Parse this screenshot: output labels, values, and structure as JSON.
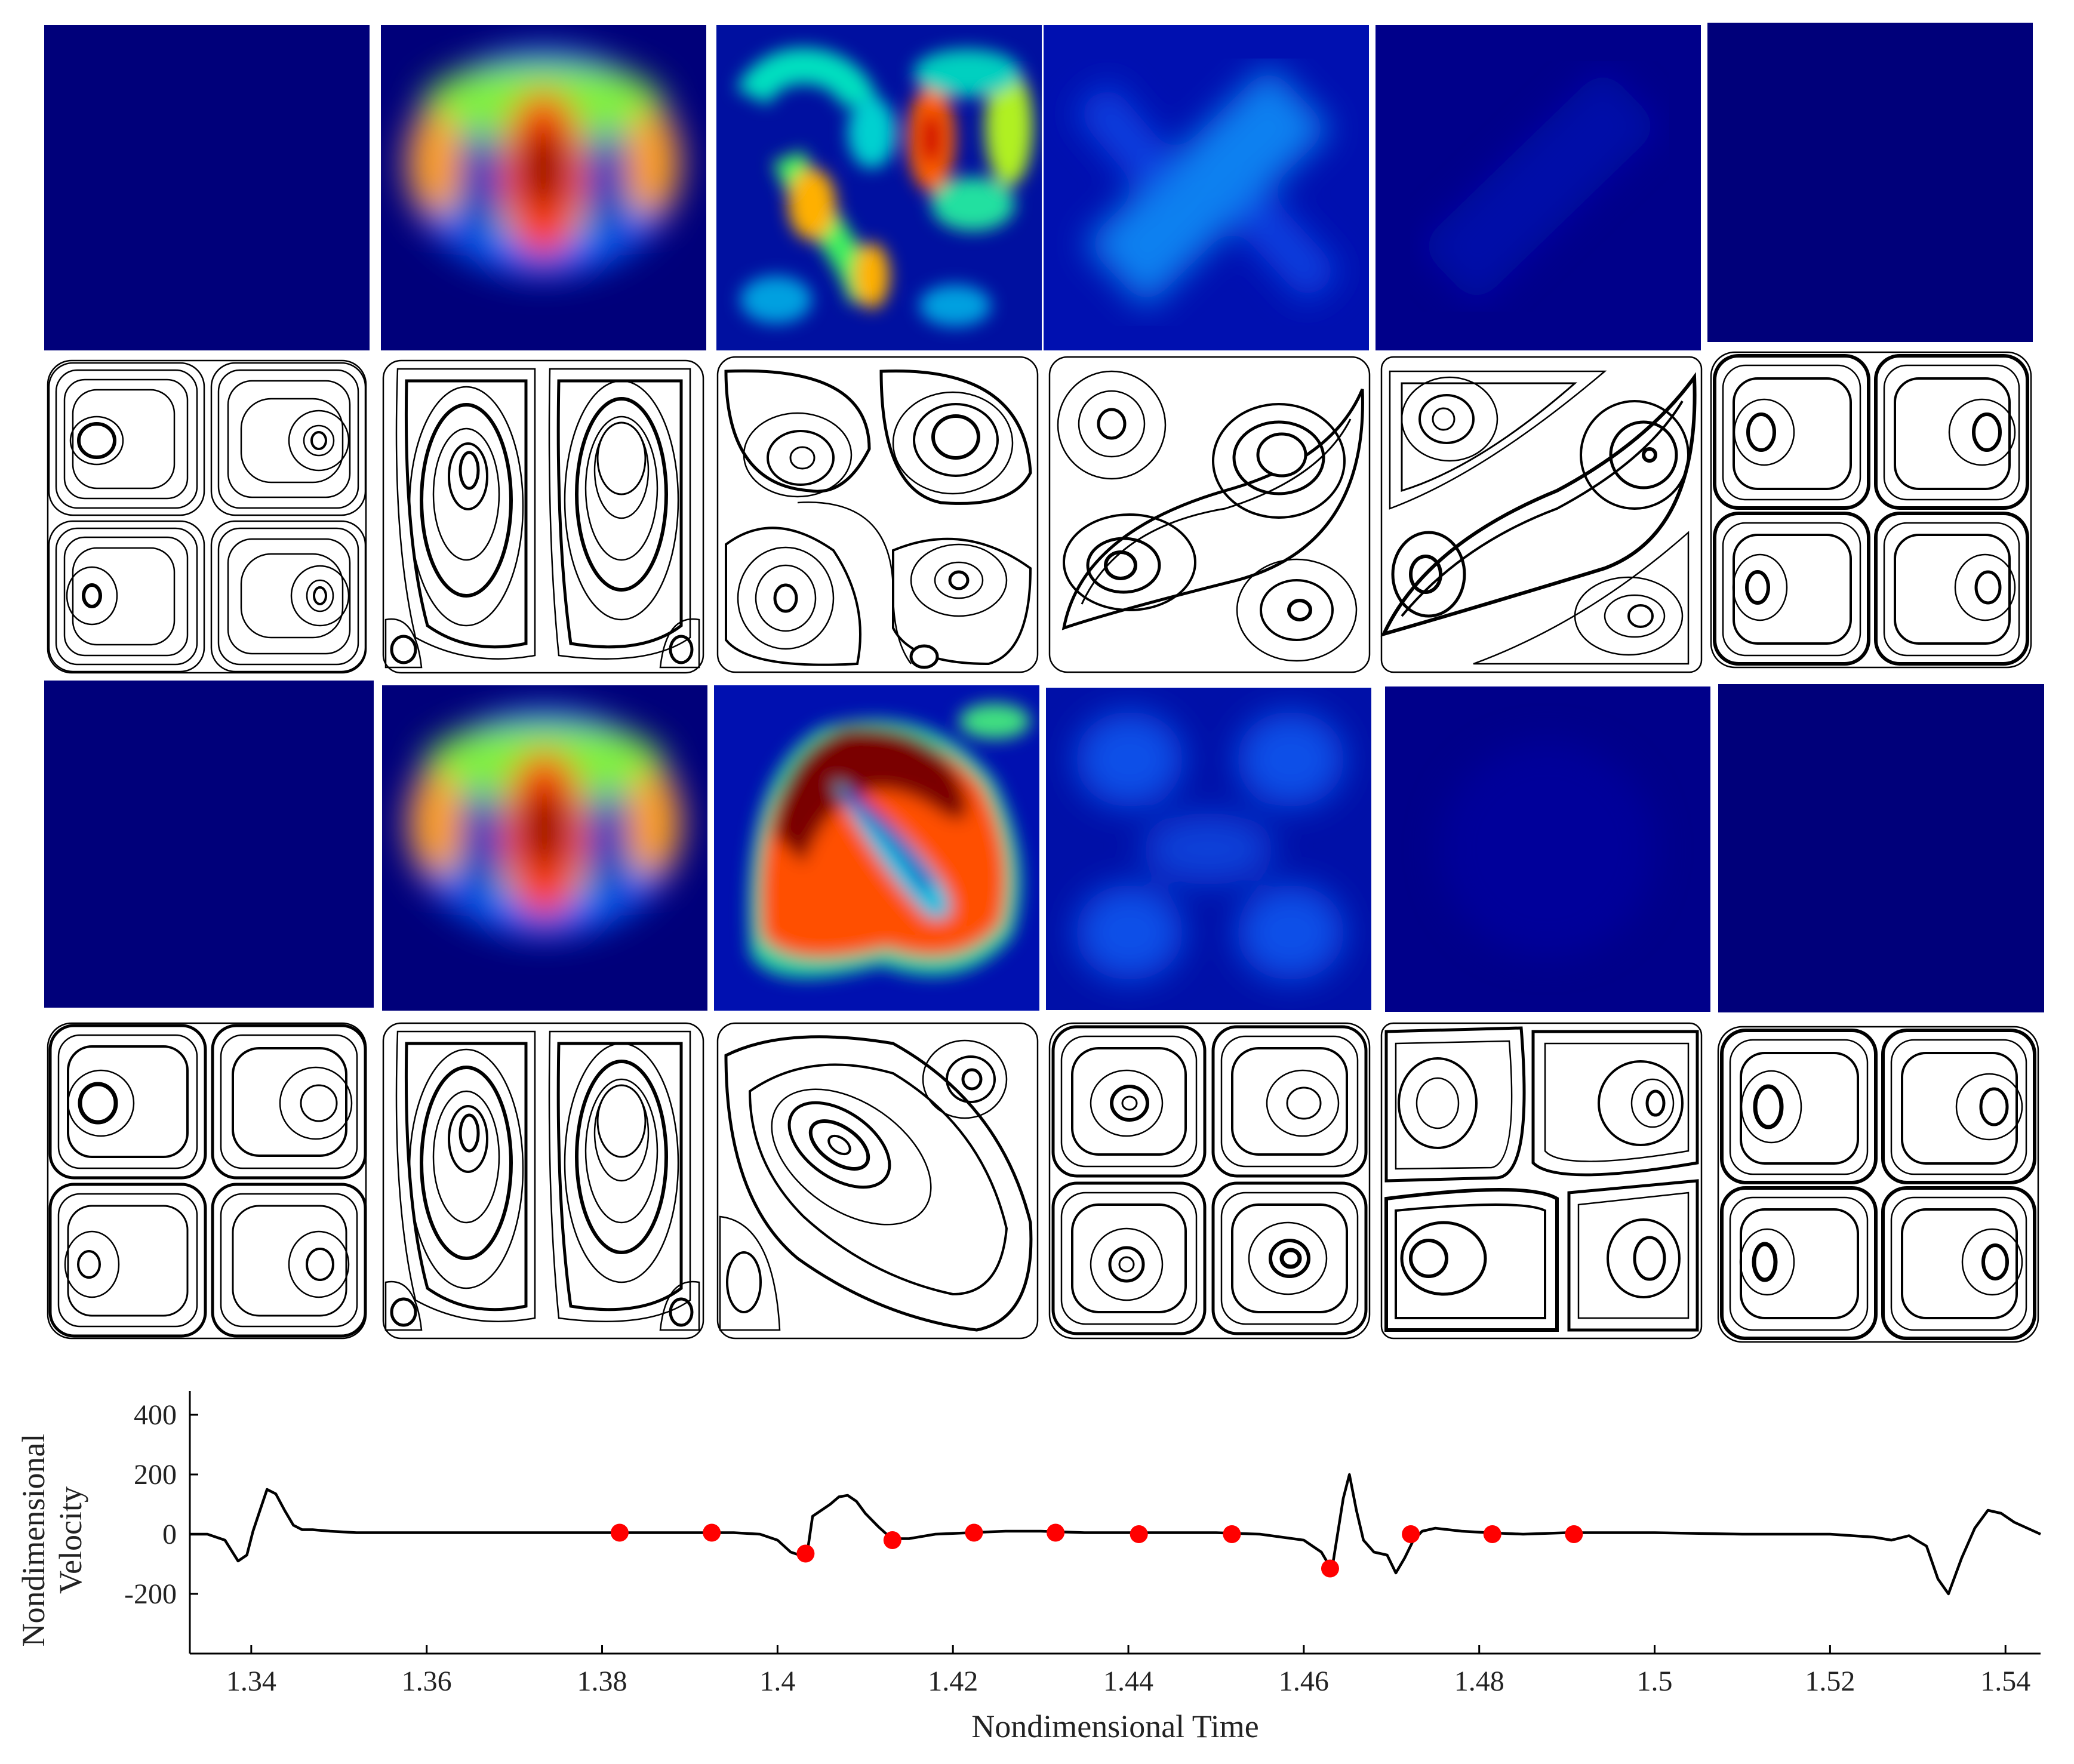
{
  "colors": {
    "heat_low": "#00007a",
    "heat_mid": "#00c8c8",
    "heat_high": "#ff3300",
    "heat_max": "#7a0000",
    "marker": "#ff0000",
    "trace": "#000000"
  },
  "chart_data": {
    "type": "line",
    "xlabel": "Nondimensional Time",
    "ylabel": "Nondimensional Velocity",
    "xlim": [
      1.333,
      1.544
    ],
    "ylim": [
      -400,
      480
    ],
    "xticks": [
      1.34,
      1.36,
      1.38,
      1.4,
      1.42,
      1.44,
      1.46,
      1.48,
      1.5,
      1.52,
      1.54
    ],
    "xtick_labels": [
      "1.34",
      "1.36",
      "1.38",
      "1.4",
      "1.42",
      "1.44",
      "1.46",
      "1.48",
      "1.5",
      "1.52",
      "1.54"
    ],
    "yticks": [
      -200,
      0,
      200,
      400
    ],
    "ytick_labels": [
      "-200",
      "0",
      "200",
      "400"
    ],
    "series": [
      {
        "name": "velocity",
        "x": [
          1.333,
          1.335,
          1.337,
          1.3385,
          1.3395,
          1.3402,
          1.341,
          1.3418,
          1.3428,
          1.3438,
          1.3448,
          1.3458,
          1.347,
          1.349,
          1.352,
          1.356,
          1.36,
          1.37,
          1.38,
          1.39,
          1.395,
          1.398,
          1.4,
          1.4015,
          1.4025,
          1.4035,
          1.404,
          1.405,
          1.406,
          1.407,
          1.408,
          1.409,
          1.41,
          1.4115,
          1.413,
          1.415,
          1.418,
          1.422,
          1.426,
          1.43,
          1.435,
          1.44,
          1.445,
          1.45,
          1.455,
          1.46,
          1.462,
          1.4632,
          1.4645,
          1.4652,
          1.466,
          1.4668,
          1.468,
          1.4695,
          1.4705,
          1.4715,
          1.4725,
          1.4735,
          1.475,
          1.478,
          1.481,
          1.485,
          1.49,
          1.5,
          1.51,
          1.52,
          1.525,
          1.527,
          1.529,
          1.531,
          1.5323,
          1.5335,
          1.535,
          1.5365,
          1.538,
          1.5395,
          1.541,
          1.544
        ],
        "y": [
          0,
          0,
          -20,
          -90,
          -70,
          10,
          80,
          150,
          135,
          80,
          30,
          15,
          15,
          10,
          5,
          5,
          5,
          5,
          5,
          5,
          5,
          0,
          -20,
          -60,
          -70,
          -40,
          60,
          80,
          100,
          125,
          130,
          110,
          70,
          25,
          -15,
          -15,
          0,
          5,
          10,
          10,
          5,
          5,
          5,
          5,
          0,
          -20,
          -60,
          -120,
          120,
          200,
          80,
          -20,
          -60,
          -70,
          -130,
          -80,
          -20,
          10,
          20,
          10,
          5,
          0,
          5,
          5,
          0,
          0,
          -10,
          -20,
          -5,
          -40,
          -150,
          -200,
          -80,
          20,
          80,
          70,
          40,
          0
        ]
      }
    ],
    "markers": {
      "x": [
        1.382,
        1.3925,
        1.4032,
        1.4131,
        1.4224,
        1.4317,
        1.4412,
        1.4518,
        1.463,
        1.4722,
        1.4815,
        1.4908
      ],
      "y": [
        5,
        5,
        -65,
        -20,
        5,
        5,
        0,
        0,
        -115,
        0,
        0,
        0
      ]
    }
  },
  "panels": {
    "heatmaps_top": [
      "uniform-blue",
      "multi-lobe",
      "scattered-lobes",
      "diagonal-band",
      "faint",
      "uniform-blue"
    ],
    "streamlines_top": [
      "four-cells",
      "two-tall-cells",
      "distorted-four",
      "diagonal-shear",
      "diagonal-shear-strong",
      "four-cells"
    ],
    "heatmaps_bottom": [
      "uniform-blue",
      "multi-lobe",
      "diagonal-ring-high",
      "faint-pattern",
      "uniform-blue",
      "uniform-blue"
    ],
    "streamlines_bottom": [
      "four-cells",
      "two-tall-cells",
      "diagonal-ellipse",
      "four-cells",
      "tilted-four",
      "four-cells"
    ]
  }
}
